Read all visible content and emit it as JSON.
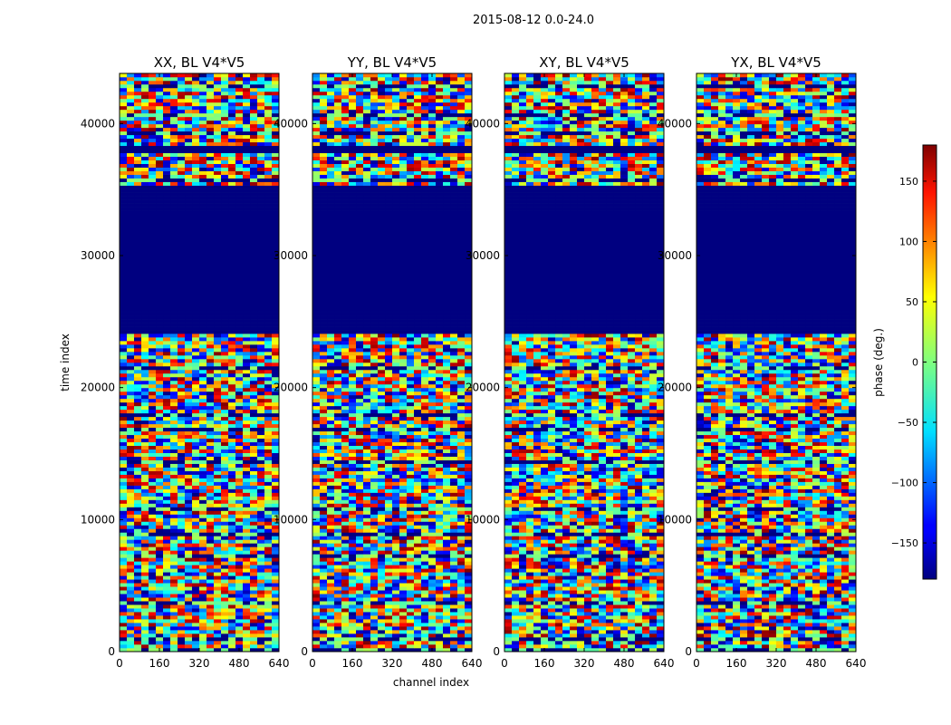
{
  "figure": {
    "suptitle": "2015-08-12 0.0-24.0"
  },
  "chart_data": {
    "type": "heatmap",
    "panels": [
      {
        "title": "XX, BL V4*V5"
      },
      {
        "title": "YY, BL V4*V5"
      },
      {
        "title": "XY, BL V4*V5"
      },
      {
        "title": "YX, BL V4*V5"
      }
    ],
    "xlabel": "channel index",
    "ylabel": "time index",
    "xlim": [
      0,
      640
    ],
    "ylim": [
      0,
      43800
    ],
    "xticks": [
      0,
      160,
      320,
      480,
      640
    ],
    "yticks": [
      0,
      10000,
      20000,
      30000,
      40000
    ],
    "colorbar": {
      "label": "phase (deg.)",
      "range": [
        -180,
        180
      ],
      "ticks": [
        -150,
        -100,
        -50,
        0,
        50,
        100,
        150
      ],
      "colormap": "jet",
      "tick_labels": [
        "−150",
        "−100",
        "−50",
        "0",
        "50",
        "100",
        "150"
      ]
    },
    "features": {
      "flagged_band": [
        24200,
        35200
      ],
      "flagged_band_top_start": 37800,
      "flagged_value": -180,
      "notes": "Noise-like phase in 0-24000 and 38000-43800; uniform -180 deg (dark blue) in flagged band."
    }
  },
  "colors": {
    "frame": "#000000",
    "flagged": "#00007f"
  }
}
